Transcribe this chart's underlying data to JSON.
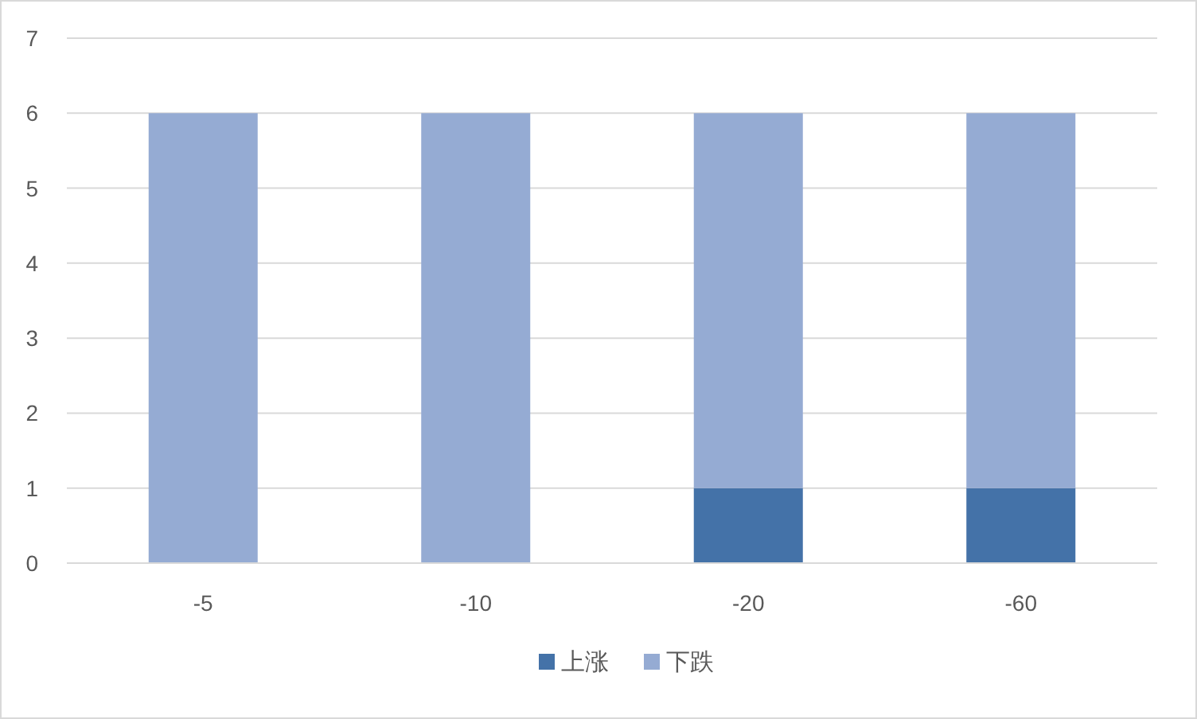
{
  "chart_data": {
    "type": "bar",
    "stacked": true,
    "categories": [
      "-5",
      "-10",
      "-20",
      "-60"
    ],
    "series": [
      {
        "name": "上涨",
        "color": "#4472a8",
        "values": [
          0,
          0,
          1,
          1
        ]
      },
      {
        "name": "下跌",
        "color": "#95abd3",
        "values": [
          6,
          6,
          5,
          5
        ]
      }
    ],
    "ylim": [
      0,
      7
    ],
    "yticks": [
      0,
      1,
      2,
      3,
      4,
      5,
      6,
      7
    ],
    "grid": "y",
    "legend": "bottom"
  }
}
